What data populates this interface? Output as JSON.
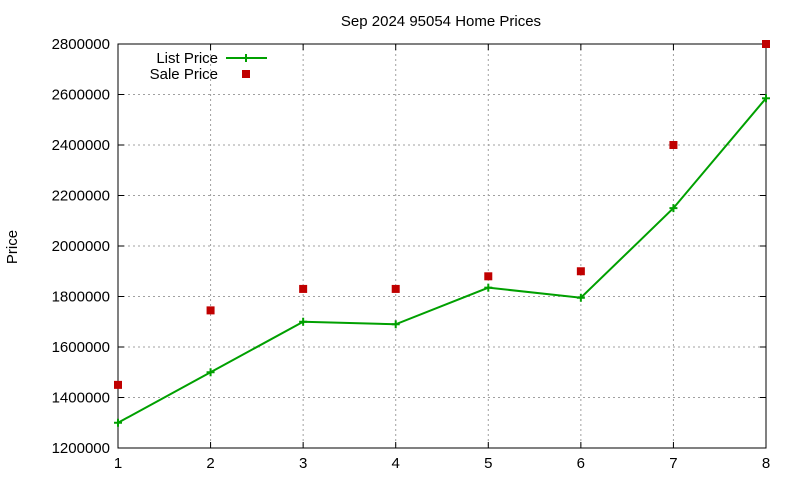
{
  "chart_data": {
    "type": "line",
    "title": "Sep 2024 95054 Home Prices",
    "xlabel": "",
    "ylabel": "Price",
    "x": [
      1,
      2,
      3,
      4,
      5,
      6,
      7,
      8
    ],
    "xlim": [
      1,
      8
    ],
    "ylim": [
      1200000,
      2800000
    ],
    "x_ticks": [
      "1",
      "2",
      "3",
      "4",
      "5",
      "6",
      "7",
      "8"
    ],
    "y_ticks": [
      "1200000",
      "1400000",
      "1600000",
      "1800000",
      "2000000",
      "2200000",
      "2400000",
      "2600000",
      "2800000"
    ],
    "grid": true,
    "legend_position": "top-left",
    "series": [
      {
        "name": "List Price",
        "style": "line-with-plus-markers",
        "color": "#00a000",
        "values": [
          1300000,
          1500000,
          1700000,
          1690000,
          1835000,
          1795000,
          2150000,
          2585000
        ]
      },
      {
        "name": "Sale Price",
        "style": "square-markers",
        "color": "#c00000",
        "values": [
          1450000,
          1745000,
          1830000,
          1830000,
          1880000,
          1900000,
          2400000,
          2800000
        ]
      }
    ]
  }
}
